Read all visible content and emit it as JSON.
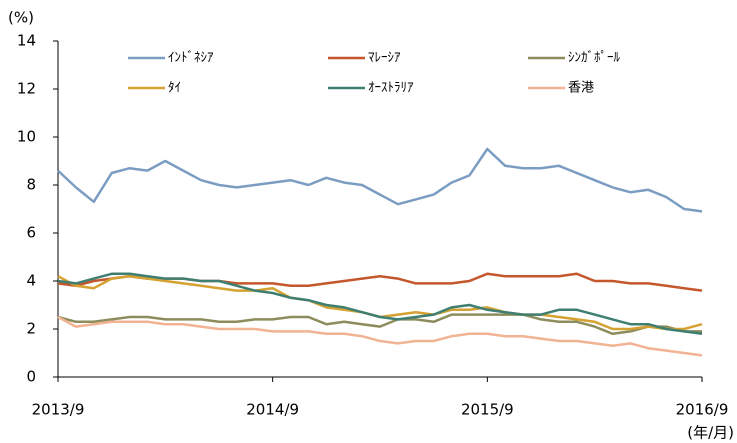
{
  "chart_data": {
    "type": "line",
    "y_label": "(%)",
    "x_label": "(年/月)",
    "categories": [
      "2013/9",
      null,
      null,
      null,
      null,
      null,
      null,
      null,
      null,
      null,
      null,
      null,
      "2014/9",
      null,
      null,
      null,
      null,
      null,
      null,
      null,
      null,
      null,
      null,
      null,
      "2015/9",
      null,
      null,
      null,
      null,
      null,
      null,
      null,
      null,
      null,
      null,
      null,
      "2016/9"
    ],
    "ylim": [
      0,
      14
    ],
    "yticks": [
      0,
      2,
      4,
      6,
      8,
      10,
      12,
      14
    ],
    "series": [
      {
        "name": "ｲﾝﾄﾞﾈｼｱ",
        "color": "#7b9dc2",
        "values": [
          8.6,
          7.9,
          7.3,
          8.5,
          8.7,
          8.6,
          9.0,
          8.6,
          8.2,
          8.0,
          7.9,
          8.0,
          8.1,
          8.2,
          8.0,
          8.3,
          8.1,
          8.0,
          7.6,
          7.2,
          7.4,
          7.6,
          8.1,
          8.4,
          9.5,
          8.8,
          8.7,
          8.7,
          8.8,
          8.5,
          8.2,
          7.9,
          7.7,
          7.8,
          7.5,
          7.0,
          6.9
        ]
      },
      {
        "name": "ﾏﾚｰｼｱ",
        "color": "#c4572b",
        "values": [
          3.9,
          3.8,
          4.0,
          4.1,
          4.2,
          4.1,
          4.1,
          4.1,
          4.0,
          4.0,
          3.9,
          3.9,
          3.9,
          3.8,
          3.8,
          3.9,
          4.0,
          4.1,
          4.2,
          4.1,
          3.9,
          3.9,
          3.9,
          4.0,
          4.3,
          4.2,
          4.2,
          4.2,
          4.2,
          4.3,
          4.0,
          4.0,
          3.9,
          3.9,
          3.8,
          3.7,
          3.6
        ]
      },
      {
        "name": "ｼﾝｶﾞﾎﾟｰﾙ",
        "color": "#8c8c5c",
        "values": [
          2.5,
          2.3,
          2.3,
          2.4,
          2.5,
          2.5,
          2.4,
          2.4,
          2.4,
          2.3,
          2.3,
          2.4,
          2.4,
          2.5,
          2.5,
          2.2,
          2.3,
          2.2,
          2.1,
          2.4,
          2.4,
          2.3,
          2.6,
          2.6,
          2.6,
          2.6,
          2.6,
          2.4,
          2.3,
          2.3,
          2.1,
          1.8,
          1.9,
          2.1,
          2.1,
          1.9,
          1.9
        ]
      },
      {
        "name": "ﾀｲ",
        "color": "#d5a232",
        "values": [
          4.2,
          3.8,
          3.7,
          4.1,
          4.2,
          4.1,
          4.0,
          3.9,
          3.8,
          3.7,
          3.6,
          3.6,
          3.7,
          3.3,
          3.2,
          2.9,
          2.8,
          2.7,
          2.5,
          2.6,
          2.7,
          2.6,
          2.8,
          2.8,
          2.9,
          2.7,
          2.6,
          2.6,
          2.5,
          2.4,
          2.3,
          2.0,
          2.0,
          2.1,
          2.0,
          2.0,
          2.2
        ]
      },
      {
        "name": "ｵｰｽﾄﾗﾘｱ",
        "color": "#3f7f72",
        "values": [
          4.0,
          3.9,
          4.1,
          4.3,
          4.3,
          4.2,
          4.1,
          4.1,
          4.0,
          4.0,
          3.8,
          3.6,
          3.5,
          3.3,
          3.2,
          3.0,
          2.9,
          2.7,
          2.5,
          2.4,
          2.5,
          2.6,
          2.9,
          3.0,
          2.8,
          2.7,
          2.6,
          2.6,
          2.8,
          2.8,
          2.6,
          2.4,
          2.2,
          2.2,
          2.0,
          1.9,
          1.8
        ]
      },
      {
        "name": "香港",
        "color": "#f2b394",
        "values": [
          2.5,
          2.1,
          2.2,
          2.3,
          2.3,
          2.3,
          2.2,
          2.2,
          2.1,
          2.0,
          2.0,
          2.0,
          1.9,
          1.9,
          1.9,
          1.8,
          1.8,
          1.7,
          1.5,
          1.4,
          1.5,
          1.5,
          1.7,
          1.8,
          1.8,
          1.7,
          1.7,
          1.6,
          1.5,
          1.5,
          1.4,
          1.3,
          1.4,
          1.2,
          1.1,
          1.0,
          0.9
        ]
      }
    ]
  }
}
